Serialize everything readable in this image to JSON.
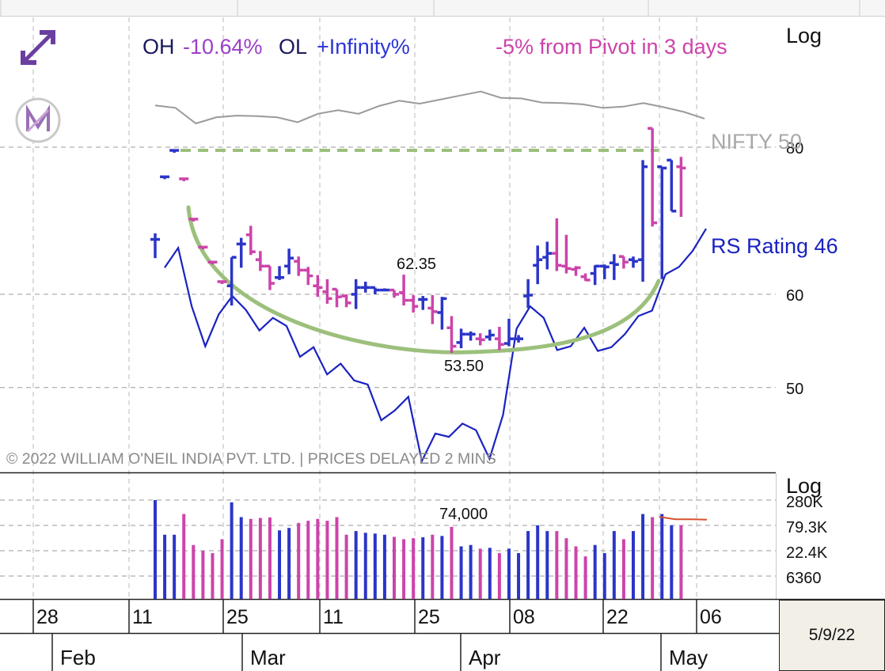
{
  "header": {
    "oh_label": "OH",
    "oh_value": "-10.64%",
    "ol_label": "OL",
    "ol_value": "+Infinity%",
    "pivot_text": "-5% from Pivot in 3 days"
  },
  "icons": {
    "expand": "expand-arrows-icon",
    "logo": "marketsmith-logo-icon"
  },
  "price_panel": {
    "scale_label": "Log",
    "benchmark_label": "NIFTY 50",
    "rs_label": "RS Rating 46",
    "annotation_high": "62.35",
    "annotation_low": "53.50",
    "copyright": "© 2022 WILLIAM O'NEIL INDIA PVT. LTD. | PRICES DELAYED 2 MINS"
  },
  "volume_panel": {
    "scale_label": "Log",
    "annotation": "74,000"
  },
  "x_axis": {
    "day_labels": [
      "28",
      "11",
      "25",
      "11",
      "25",
      "08",
      "22",
      "06"
    ],
    "month_labels": [
      "Feb",
      "Mar",
      "Apr",
      "May"
    ]
  },
  "date_box": "5/9/22",
  "colors": {
    "up": "#2b35c8",
    "down": "#cc44aa",
    "rs_line": "#1a22c0",
    "nifty_line": "#9a9a9a",
    "cup_arc": "#9cc07c",
    "pivot_line": "#9cc07c",
    "volume_avg": "#d85030",
    "oh_value": "#9b3fc9",
    "ol_value": "#2b35d6",
    "header_dark": "#1a1a5e"
  },
  "chart_data": {
    "type": "candlestick",
    "scale": "log",
    "y_ticks": [
      50,
      60,
      80
    ],
    "volume_ticks": [
      "280K",
      "79.3K",
      "22.4K",
      "6360"
    ],
    "grid": true,
    "annotations": [
      {
        "text": "62.35",
        "value": 62.35
      },
      {
        "text": "53.50",
        "value": 53.5
      }
    ],
    "pivot": 79.5,
    "bars": [
      {
        "o": 66.8,
        "h": 67.6,
        "l": 64.4,
        "c": 66.8,
        "up": true,
        "v": 280000
      },
      {
        "o": 75.5,
        "h": 75.5,
        "l": 75.5,
        "c": 75.5,
        "up": true,
        "v": 50000
      },
      {
        "o": 79.5,
        "h": 79.5,
        "l": 79.5,
        "c": 79.5,
        "up": true,
        "v": 50000
      },
      {
        "o": 75.2,
        "h": 75.2,
        "l": 75.2,
        "c": 75.2,
        "up": false,
        "v": 140000
      },
      {
        "o": 69.5,
        "h": 69.5,
        "l": 69.5,
        "c": 69.5,
        "up": false,
        "v": 30000
      },
      {
        "o": 65.8,
        "h": 65.8,
        "l": 65.8,
        "c": 65.8,
        "up": false,
        "v": 22400
      },
      {
        "o": 63.9,
        "h": 63.9,
        "l": 63.9,
        "c": 63.9,
        "up": false,
        "v": 20000
      },
      {
        "o": 61.5,
        "h": 61.5,
        "l": 61.5,
        "c": 61.5,
        "up": false,
        "v": 40000
      },
      {
        "o": 61.0,
        "h": 64.5,
        "l": 58.7,
        "c": 64.5,
        "up": true,
        "v": 250000
      },
      {
        "o": 66.2,
        "h": 67.0,
        "l": 63.2,
        "c": 66.2,
        "up": true,
        "v": 120000
      },
      {
        "o": 67.4,
        "h": 68.6,
        "l": 64.8,
        "c": 65.2,
        "up": false,
        "v": 110000
      },
      {
        "o": 64.2,
        "h": 65.3,
        "l": 62.8,
        "c": 63.4,
        "up": false,
        "v": 115000
      },
      {
        "o": 63.4,
        "h": 63.4,
        "l": 60.5,
        "c": 61.3,
        "up": false,
        "v": 118000
      },
      {
        "o": 62.0,
        "h": 63.4,
        "l": 61.7,
        "c": 62.0,
        "up": true,
        "v": 62000
      },
      {
        "o": 63.4,
        "h": 65.6,
        "l": 62.4,
        "c": 64.4,
        "up": true,
        "v": 70000
      },
      {
        "o": 64.0,
        "h": 64.6,
        "l": 62.2,
        "c": 62.9,
        "up": false,
        "v": 90000
      },
      {
        "o": 62.9,
        "h": 63.3,
        "l": 61.1,
        "c": 62.2,
        "up": false,
        "v": 100000
      },
      {
        "o": 61.0,
        "h": 62.3,
        "l": 59.7,
        "c": 60.8,
        "up": false,
        "v": 110000
      },
      {
        "o": 60.3,
        "h": 61.8,
        "l": 58.9,
        "c": 59.5,
        "up": false,
        "v": 100000
      },
      {
        "o": 60.6,
        "h": 60.6,
        "l": 58.5,
        "c": 59.7,
        "up": false,
        "v": 120000
      },
      {
        "o": 59.8,
        "h": 60.0,
        "l": 58.5,
        "c": 59.0,
        "up": false,
        "v": 50000
      },
      {
        "o": 60.0,
        "h": 61.8,
        "l": 58.3,
        "c": 60.8,
        "up": true,
        "v": 60000
      },
      {
        "o": 60.8,
        "h": 61.5,
        "l": 60.2,
        "c": 60.8,
        "up": true,
        "v": 55000
      },
      {
        "o": 60.8,
        "h": 60.8,
        "l": 60.0,
        "c": 60.5,
        "up": true,
        "v": 53000
      },
      {
        "o": 60.5,
        "h": 60.7,
        "l": 60.4,
        "c": 60.5,
        "up": true,
        "v": 50000
      },
      {
        "o": 60.5,
        "h": 60.5,
        "l": 59.6,
        "c": 60.0,
        "up": false,
        "v": 45000
      },
      {
        "o": 60.2,
        "h": 62.35,
        "l": 58.7,
        "c": 59.3,
        "up": false,
        "v": 40000
      },
      {
        "o": 59.3,
        "h": 59.9,
        "l": 57.9,
        "c": 58.6,
        "up": false,
        "v": 42000
      },
      {
        "o": 59.4,
        "h": 59.8,
        "l": 58.2,
        "c": 59.4,
        "up": true,
        "v": 44000
      },
      {
        "o": 58.4,
        "h": 59.9,
        "l": 56.6,
        "c": 58.0,
        "up": false,
        "v": 50000
      },
      {
        "o": 57.9,
        "h": 59.7,
        "l": 56.0,
        "c": 59.5,
        "up": true,
        "v": 47000
      },
      {
        "o": 56.2,
        "h": 57.5,
        "l": 53.5,
        "c": 54.2,
        "up": false,
        "v": 74000
      },
      {
        "o": 54.6,
        "h": 56.1,
        "l": 54.0,
        "c": 55.5,
        "up": true,
        "v": 28000
      },
      {
        "o": 55.5,
        "h": 55.8,
        "l": 54.8,
        "c": 55.5,
        "up": true,
        "v": 30000
      },
      {
        "o": 55.0,
        "h": 55.6,
        "l": 54.3,
        "c": 54.9,
        "up": false,
        "v": 25000
      },
      {
        "o": 55.2,
        "h": 56.0,
        "l": 54.8,
        "c": 55.4,
        "up": true,
        "v": 26000
      },
      {
        "o": 55.0,
        "h": 56.3,
        "l": 53.8,
        "c": 54.4,
        "up": false,
        "v": 20000
      },
      {
        "o": 54.5,
        "h": 57.2,
        "l": 54.2,
        "c": 55.0,
        "up": true,
        "v": 25000
      },
      {
        "o": 55.0,
        "h": 55.4,
        "l": 54.6,
        "c": 55.0,
        "up": true,
        "v": 20000
      },
      {
        "o": 59.8,
        "h": 61.8,
        "l": 58.4,
        "c": 59.9,
        "up": true,
        "v": 60000
      },
      {
        "o": 63.5,
        "h": 66.0,
        "l": 61.2,
        "c": 64.2,
        "up": true,
        "v": 80000
      },
      {
        "o": 64.5,
        "h": 66.5,
        "l": 63.0,
        "c": 65.0,
        "up": true,
        "v": 60000
      },
      {
        "o": 65.0,
        "h": 69.6,
        "l": 62.8,
        "c": 63.5,
        "up": false,
        "v": 60000
      },
      {
        "o": 63.4,
        "h": 67.4,
        "l": 62.5,
        "c": 63.1,
        "up": false,
        "v": 42000
      },
      {
        "o": 63.0,
        "h": 63.4,
        "l": 62.2,
        "c": 63.2,
        "up": false,
        "v": 28000
      },
      {
        "o": 62.1,
        "h": 62.5,
        "l": 61.6,
        "c": 61.7,
        "up": false,
        "v": 17000
      },
      {
        "o": 62.5,
        "h": 63.5,
        "l": 61.1,
        "c": 63.4,
        "up": true,
        "v": 30000
      },
      {
        "o": 63.4,
        "h": 63.6,
        "l": 61.8,
        "c": 63.3,
        "up": true,
        "v": 20000
      },
      {
        "o": 63.8,
        "h": 64.9,
        "l": 61.7,
        "c": 63.6,
        "up": true,
        "v": 60000
      },
      {
        "o": 64.6,
        "h": 64.6,
        "l": 63.1,
        "c": 63.9,
        "up": false,
        "v": 40000
      },
      {
        "o": 64.2,
        "h": 64.6,
        "l": 63.2,
        "c": 64.0,
        "up": true,
        "v": 60000
      },
      {
        "o": 64.2,
        "h": 78.0,
        "l": 61.5,
        "c": 77.0,
        "up": true,
        "v": 140000
      },
      {
        "o": 83.0,
        "h": 83.0,
        "l": 68.5,
        "c": 69.0,
        "up": false,
        "v": 120000
      },
      {
        "o": 77.0,
        "h": 77.0,
        "l": 61.8,
        "c": 76.8,
        "up": true,
        "v": 140000
      },
      {
        "o": 78.0,
        "h": 78.0,
        "l": 70.6,
        "c": 70.6,
        "up": true,
        "v": 80000
      },
      {
        "o": 77.0,
        "h": 78.5,
        "l": 69.8,
        "c": 76.8,
        "up": false,
        "v": 80000
      }
    ],
    "series": [
      {
        "name": "RS Rating 46",
        "values": [
          63.2,
          65.7,
          58.6,
          54.2,
          57.7,
          59.8,
          58.2,
          55.9,
          57.3,
          56.4,
          53.1,
          54.1,
          51.3,
          52.4,
          50.7,
          50.3,
          46.9,
          47.8,
          49.1,
          43.3,
          45.7,
          45.4,
          46.6,
          46.0,
          43.5,
          47.4,
          56.1,
          58.6,
          57.3,
          53.8,
          54.2,
          56.2,
          53.7,
          54.1,
          55.5,
          57.5,
          58.1,
          62.4,
          63.3,
          65.3,
          68.2
        ]
      },
      {
        "name": "NIFTY 50",
        "values": [
          86.8,
          86.4,
          83.8,
          84.8,
          85.1,
          85.0,
          84.8,
          84.0,
          85.4,
          86.0,
          85.4,
          86.7,
          87.6,
          87.1,
          87.8,
          88.5,
          89.2,
          88.1,
          88.0,
          87.3,
          87.2,
          87.0,
          86.4,
          86.6,
          87.2,
          86.5,
          85.7,
          84.6
        ]
      }
    ],
    "volume_avg": [
      121000,
      108000,
      108000,
      106000
    ],
    "pivot_line_from": "Feb 11",
    "x_day_labels": [
      "28",
      "11",
      "25",
      "11",
      "25",
      "08",
      "22",
      "06"
    ],
    "x_month_labels": [
      "Feb",
      "Mar",
      "Apr",
      "May"
    ]
  }
}
